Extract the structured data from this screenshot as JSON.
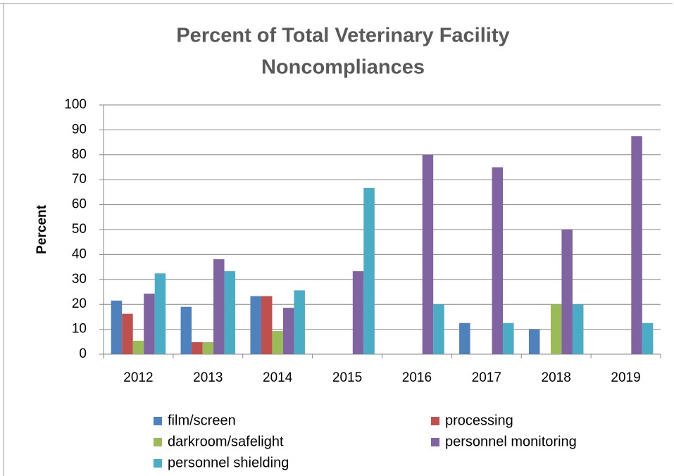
{
  "chart_data": {
    "type": "bar",
    "title": [
      "Percent  of Total Veterinary Facility",
      "Noncompliances"
    ],
    "y_label": "Percent",
    "categories": [
      "2012",
      "2013",
      "2014",
      "2015",
      "2016",
      "2017",
      "2018",
      "2019"
    ],
    "series": [
      {
        "name": "film/screen",
        "color": "#4f81bd",
        "values": [
          21.5,
          19.0,
          23.3,
          0,
          0,
          12.5,
          10,
          0
        ]
      },
      {
        "name": "processing",
        "color": "#c0504d",
        "values": [
          16.2,
          4.8,
          23.3,
          0,
          0,
          0,
          0,
          0
        ]
      },
      {
        "name": "darkroom/safelight",
        "color": "#9bbb59",
        "values": [
          5.4,
          4.8,
          9.3,
          0,
          0,
          0,
          20,
          0
        ]
      },
      {
        "name": "personnel monitoring",
        "color": "#8064a2",
        "values": [
          24.3,
          38.1,
          18.6,
          33.3,
          80,
          75,
          50,
          87.5
        ]
      },
      {
        "name": "personnel shielding",
        "color": "#4bacc6",
        "values": [
          32.4,
          33.3,
          25.6,
          66.7,
          20,
          12.5,
          20,
          12.5
        ]
      }
    ],
    "ylim": [
      0,
      100
    ],
    "yticks": [
      0,
      10,
      20,
      30,
      40,
      50,
      60,
      70,
      80,
      90,
      100
    ],
    "grid": true,
    "legend": "bottom"
  }
}
